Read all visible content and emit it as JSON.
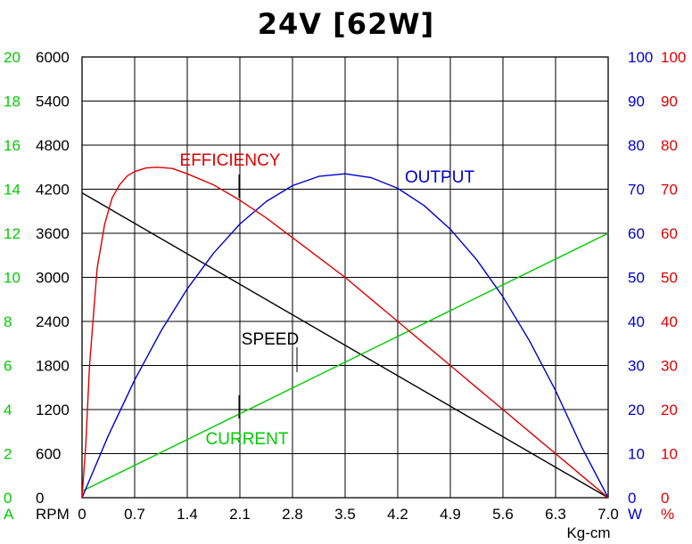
{
  "chart_data": {
    "type": "line",
    "title": "24V [62W]",
    "xlabel": "Kg-cm",
    "xlim": [
      0,
      7.0
    ],
    "x_ticks": [
      "0",
      "0.7",
      "1.4",
      "2.1",
      "2.8",
      "3.5",
      "4.2",
      "4.9",
      "5.6",
      "6.3",
      "7.0"
    ],
    "grid": true,
    "axes": {
      "current": {
        "unit": "A",
        "color": "#00cc00",
        "range": [
          0,
          20
        ],
        "ticks": [
          "0",
          "2",
          "4",
          "6",
          "8",
          "10",
          "12",
          "14",
          "16",
          "18",
          "20"
        ]
      },
      "speed": {
        "unit": "RPM",
        "color": "#000000",
        "range": [
          0,
          6000
        ],
        "ticks": [
          "0",
          "600",
          "1200",
          "1800",
          "2400",
          "3000",
          "3600",
          "4200",
          "4800",
          "5400",
          "6000"
        ]
      },
      "output": {
        "unit": "W",
        "color": "#0000cc",
        "range": [
          0,
          100
        ],
        "ticks": [
          "0",
          "10",
          "20",
          "30",
          "40",
          "50",
          "60",
          "70",
          "80",
          "90",
          "100"
        ]
      },
      "efficiency": {
        "unit": "%",
        "color": "#dd0000",
        "range": [
          0,
          100
        ],
        "ticks": [
          "0",
          "10",
          "20",
          "30",
          "40",
          "50",
          "60",
          "70",
          "80",
          "90",
          "100"
        ]
      }
    },
    "series": [
      {
        "name": "SPEED",
        "axis": "speed",
        "color": "#000000",
        "x": [
          0,
          7.0
        ],
        "y": [
          4150,
          0
        ]
      },
      {
        "name": "CURRENT",
        "axis": "current",
        "color": "#00cc00",
        "x": [
          0,
          7.0
        ],
        "y": [
          0.3,
          12.0
        ]
      },
      {
        "name": "OUTPUT",
        "axis": "output",
        "color": "#0000cc",
        "x": [
          0,
          0.35,
          0.7,
          1.05,
          1.4,
          1.75,
          2.1,
          2.45,
          2.8,
          3.15,
          3.5,
          3.85,
          4.2,
          4.55,
          4.9,
          5.25,
          5.6,
          5.95,
          6.3,
          6.65,
          7.0
        ],
        "y": [
          0,
          14.1,
          26.7,
          37.8,
          47.4,
          55.5,
          62.1,
          67.2,
          70.8,
          72.9,
          73.5,
          72.6,
          70.2,
          66.3,
          60.9,
          54.0,
          45.6,
          35.7,
          24.3,
          11.4,
          0
        ]
      },
      {
        "name": "EFFICIENCY",
        "axis": "efficiency",
        "color": "#dd0000",
        "x": [
          0,
          0.05,
          0.1,
          0.2,
          0.3,
          0.4,
          0.5,
          0.6,
          0.7,
          0.85,
          1.0,
          1.2,
          1.4,
          1.75,
          2.1,
          2.45,
          2.8,
          3.15,
          3.5,
          3.85,
          4.2,
          4.55,
          4.9,
          5.25,
          5.6,
          5.95,
          6.3,
          6.65,
          7.0
        ],
        "y": [
          0,
          12,
          30,
          52,
          62,
          68,
          71,
          73,
          74,
          74.8,
          75,
          74.7,
          73.5,
          71,
          67.5,
          63.5,
          59,
          54.5,
          50,
          45,
          40,
          35,
          30,
          25,
          20,
          15,
          10,
          5,
          0
        ]
      }
    ],
    "annotations": [
      {
        "text": "EFFICIENCY",
        "color": "#dd0000"
      },
      {
        "text": "OUTPUT",
        "color": "#0000cc"
      },
      {
        "text": "SPEED",
        "color": "#000000"
      },
      {
        "text": "CURRENT",
        "color": "#00cc00"
      }
    ]
  }
}
